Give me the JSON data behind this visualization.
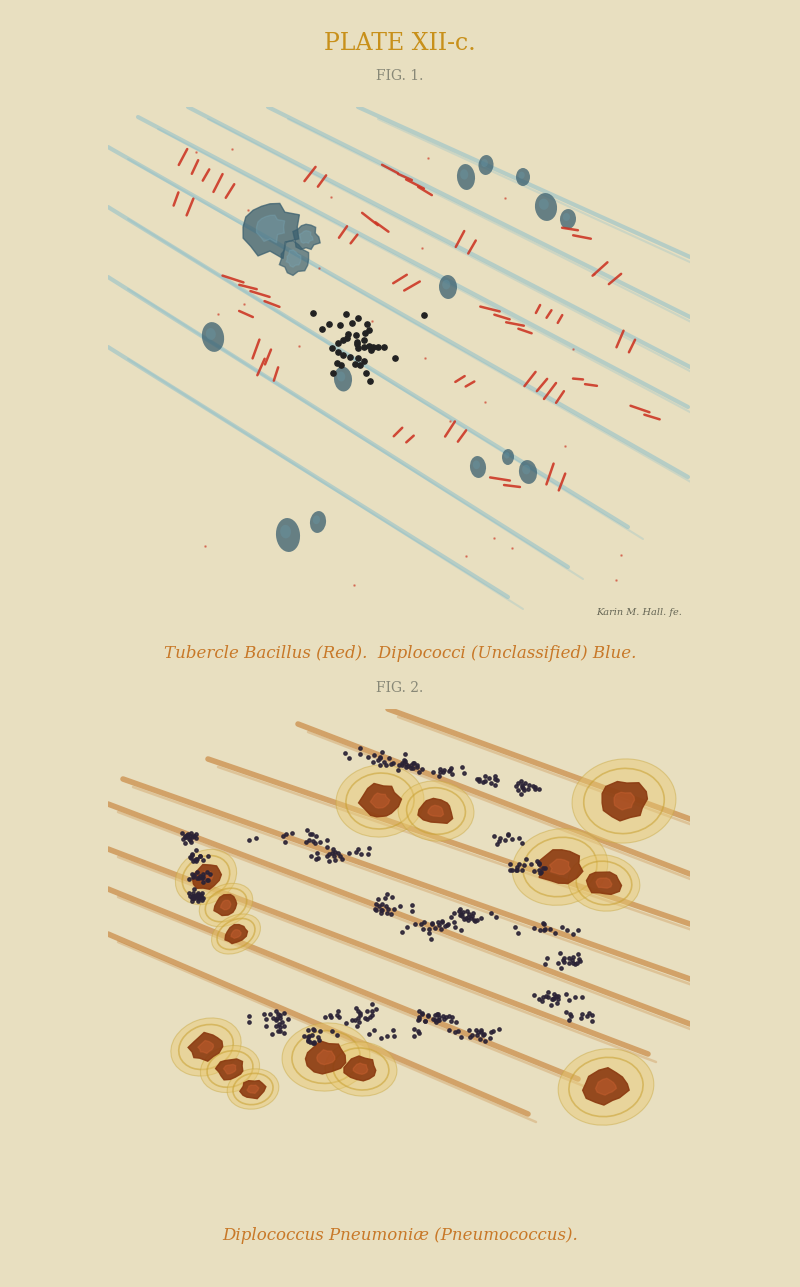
{
  "title": "PLATE XII-c.",
  "fig1_label": "FIG. 1.",
  "fig2_label": "FIG. 2.",
  "caption1": "Tubercle Bacillus (Red).  Diplococci (Unclassified) Blue.",
  "caption2": "Diplococcus Pneumoniæ (Pneumococcus).",
  "bg_color": "#e8dfc0",
  "fig1_bg": "#cfe8e4",
  "fig2_bg": "#f0d8a0",
  "title_color": "#c8901a",
  "caption_color": "#c87828",
  "fig_label_color": "#888877",
  "red_bacillus_color": "#cc3322",
  "blue_diplo_color": "#3a5f6f",
  "black_dot_color": "#222222",
  "fig2_diplo_color": "#2a2235",
  "fig2_cell_color": "#8b3a10",
  "fig2_orange_streak": "#c07020",
  "signature": "Karin M. Hall. fe."
}
